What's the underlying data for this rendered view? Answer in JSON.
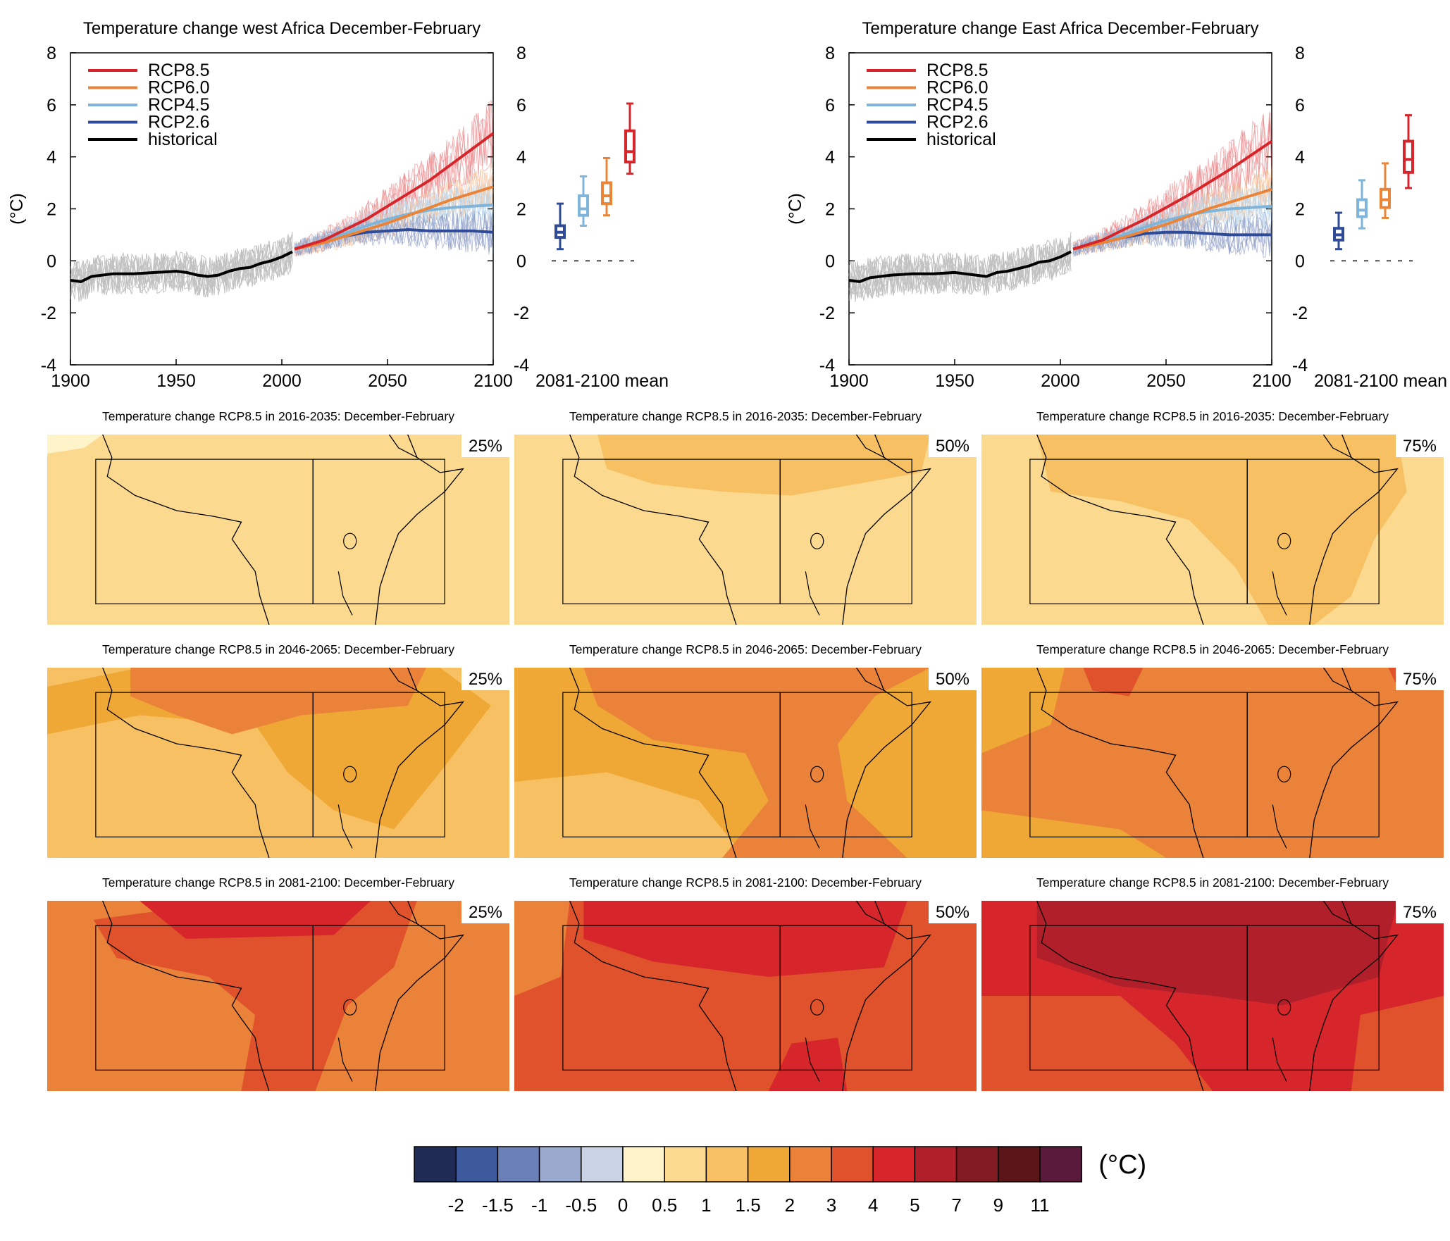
{
  "colors": {
    "rcp85": "#d7262b",
    "rcp60": "#ea8439",
    "rcp45": "#7fb4db",
    "rcp26": "#2f4b97",
    "historical": "#000000",
    "spread_hist": "#8f8f8f"
  },
  "chart_data": [
    {
      "type": "line",
      "title": "Temperature change west Africa December-February",
      "ylabel": "(°C)",
      "xlim": [
        1900,
        2100
      ],
      "ylim": [
        -4,
        8
      ],
      "xticks": [
        "1900",
        "1950",
        "2000",
        "2050",
        "2100"
      ],
      "yticks": [
        "-4",
        "-2",
        "0",
        "2",
        "4",
        "6",
        "8"
      ],
      "legend": [
        "RCP8.5",
        "RCP6.0",
        "RCP4.5",
        "RCP2.6",
        "historical"
      ],
      "legend_position": "top-left",
      "series": [
        {
          "name": "historical",
          "x": [
            1900,
            1905,
            1910,
            1920,
            1930,
            1940,
            1950,
            1955,
            1960,
            1965,
            1970,
            1975,
            1980,
            1985,
            1990,
            1995,
            2000,
            2005
          ],
          "y": [
            -0.75,
            -0.8,
            -0.6,
            -0.5,
            -0.5,
            -0.45,
            -0.4,
            -0.45,
            -0.55,
            -0.6,
            -0.55,
            -0.4,
            -0.3,
            -0.25,
            -0.1,
            0.0,
            0.15,
            0.35
          ]
        },
        {
          "name": "RCP8.5",
          "x": [
            2006,
            2020,
            2030,
            2040,
            2050,
            2060,
            2070,
            2080,
            2090,
            2100
          ],
          "y": [
            0.45,
            0.8,
            1.2,
            1.6,
            2.1,
            2.6,
            3.1,
            3.7,
            4.3,
            4.9
          ]
        },
        {
          "name": "RCP6.0",
          "x": [
            2006,
            2020,
            2030,
            2040,
            2050,
            2060,
            2070,
            2080,
            2090,
            2100
          ],
          "y": [
            0.45,
            0.7,
            0.95,
            1.2,
            1.45,
            1.75,
            2.05,
            2.35,
            2.6,
            2.85
          ]
        },
        {
          "name": "RCP4.5",
          "x": [
            2006,
            2020,
            2030,
            2040,
            2050,
            2060,
            2070,
            2080,
            2090,
            2100
          ],
          "y": [
            0.45,
            0.8,
            1.05,
            1.35,
            1.6,
            1.8,
            1.95,
            2.05,
            2.1,
            2.15
          ]
        },
        {
          "name": "RCP2.6",
          "x": [
            2006,
            2020,
            2030,
            2040,
            2050,
            2060,
            2070,
            2080,
            2090,
            2100
          ],
          "y": [
            0.45,
            0.75,
            0.95,
            1.1,
            1.15,
            1.2,
            1.15,
            1.15,
            1.15,
            1.1
          ]
        }
      ],
      "boxes_label": "2081-2100 mean",
      "boxes": [
        {
          "name": "RCP2.6",
          "min": 0.45,
          "q1": 0.9,
          "median": 1.1,
          "q3": 1.35,
          "max": 2.2
        },
        {
          "name": "RCP4.5",
          "min": 1.35,
          "q1": 1.75,
          "median": 2.0,
          "q3": 2.5,
          "max": 3.25
        },
        {
          "name": "RCP6.0",
          "min": 1.75,
          "q1": 2.2,
          "median": 2.5,
          "q3": 3.0,
          "max": 3.95
        },
        {
          "name": "RCP8.5",
          "min": 3.35,
          "q1": 3.8,
          "median": 4.2,
          "q3": 5.0,
          "max": 6.05
        }
      ]
    },
    {
      "type": "line",
      "title": "Temperature change East Africa December-February",
      "ylabel": "(°C)",
      "xlim": [
        1900,
        2100
      ],
      "ylim": [
        -4,
        8
      ],
      "xticks": [
        "1900",
        "1950",
        "2000",
        "2050",
        "2100"
      ],
      "yticks": [
        "-4",
        "-2",
        "0",
        "2",
        "4",
        "6",
        "8"
      ],
      "legend": [
        "RCP8.5",
        "RCP6.0",
        "RCP4.5",
        "RCP2.6",
        "historical"
      ],
      "legend_position": "top-left",
      "series": [
        {
          "name": "historical",
          "x": [
            1900,
            1905,
            1910,
            1920,
            1930,
            1940,
            1950,
            1955,
            1960,
            1965,
            1970,
            1975,
            1980,
            1985,
            1990,
            1995,
            2000,
            2005
          ],
          "y": [
            -0.75,
            -0.8,
            -0.65,
            -0.55,
            -0.5,
            -0.5,
            -0.45,
            -0.5,
            -0.55,
            -0.6,
            -0.45,
            -0.4,
            -0.3,
            -0.2,
            -0.05,
            0.0,
            0.15,
            0.35
          ]
        },
        {
          "name": "RCP8.5",
          "x": [
            2006,
            2020,
            2030,
            2040,
            2050,
            2060,
            2070,
            2080,
            2090,
            2100
          ],
          "y": [
            0.45,
            0.8,
            1.2,
            1.6,
            2.05,
            2.5,
            3.0,
            3.5,
            4.05,
            4.6
          ]
        },
        {
          "name": "RCP6.0",
          "x": [
            2006,
            2020,
            2030,
            2040,
            2050,
            2060,
            2070,
            2080,
            2090,
            2100
          ],
          "y": [
            0.45,
            0.7,
            0.9,
            1.15,
            1.4,
            1.7,
            2.0,
            2.25,
            2.5,
            2.75
          ]
        },
        {
          "name": "RCP4.5",
          "x": [
            2006,
            2020,
            2030,
            2040,
            2050,
            2060,
            2070,
            2080,
            2090,
            2100
          ],
          "y": [
            0.45,
            0.75,
            1.0,
            1.3,
            1.55,
            1.75,
            1.9,
            2.0,
            2.05,
            2.1
          ]
        },
        {
          "name": "RCP2.6",
          "x": [
            2006,
            2020,
            2030,
            2040,
            2050,
            2060,
            2070,
            2080,
            2090,
            2100
          ],
          "y": [
            0.45,
            0.7,
            0.9,
            1.05,
            1.1,
            1.1,
            1.05,
            1.0,
            1.0,
            1.0
          ]
        }
      ],
      "boxes_label": "2081-2100 mean",
      "boxes": [
        {
          "name": "RCP2.6",
          "min": 0.45,
          "q1": 0.8,
          "median": 1.0,
          "q3": 1.25,
          "max": 1.85
        },
        {
          "name": "RCP4.5",
          "min": 1.25,
          "q1": 1.7,
          "median": 1.95,
          "q3": 2.35,
          "max": 3.1
        },
        {
          "name": "RCP6.0",
          "min": 1.65,
          "q1": 2.05,
          "median": 2.35,
          "q3": 2.75,
          "max": 3.75
        },
        {
          "name": "RCP8.5",
          "min": 2.8,
          "q1": 3.4,
          "median": 3.9,
          "q3": 4.6,
          "max": 5.6
        }
      ]
    },
    {
      "type": "heatmap",
      "maps": [
        {
          "title": "Temperature change RCP8.5 in 2016-2035: December-February",
          "percentile": "25%"
        },
        {
          "title": "Temperature change RCP8.5 in 2016-2035: December-February",
          "percentile": "50%"
        },
        {
          "title": "Temperature change RCP8.5 in 2016-2035: December-February",
          "percentile": "75%"
        },
        {
          "title": "Temperature change RCP8.5 in 2046-2065: December-February",
          "percentile": "25%"
        },
        {
          "title": "Temperature change RCP8.5 in 2046-2065: December-February",
          "percentile": "50%"
        },
        {
          "title": "Temperature change RCP8.5 in 2046-2065: December-February",
          "percentile": "75%"
        },
        {
          "title": "Temperature change RCP8.5 in 2081-2100: December-February",
          "percentile": "25%"
        },
        {
          "title": "Temperature change RCP8.5 in 2081-2100: December-February",
          "percentile": "50%"
        },
        {
          "title": "Temperature change RCP8.5 in 2081-2100: December-February",
          "percentile": "75%"
        }
      ],
      "colorbar": {
        "unit": "(°C)",
        "labels": [
          "-2",
          "-1.5",
          "-1",
          "-0.5",
          "0",
          "0.5",
          "1",
          "1.5",
          "2",
          "3",
          "4",
          "5",
          "7",
          "9",
          "11"
        ],
        "colors": [
          "#1f2a55",
          "#3d5a9c",
          "#6a80b6",
          "#9aaace",
          "#c9d3e4",
          "#fff4c9",
          "#fbd98f",
          "#f7c062",
          "#efa835",
          "#ea823a",
          "#e0522b",
          "#d7262b",
          "#b11f2b",
          "#831b22",
          "#5a1519",
          "#5a1a3c"
        ]
      }
    }
  ]
}
